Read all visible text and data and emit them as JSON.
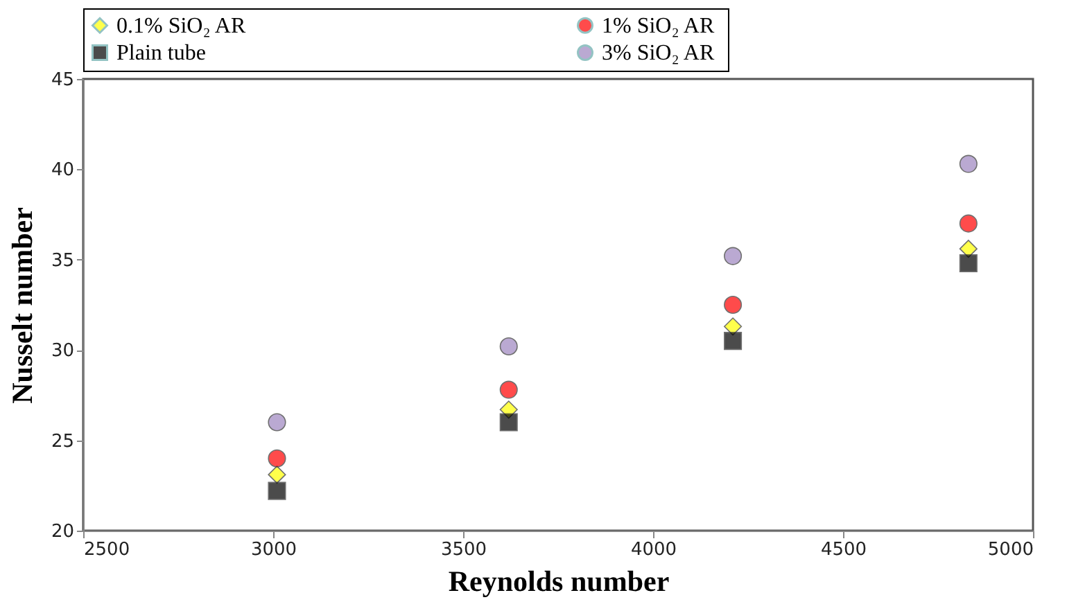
{
  "chart_data": {
    "type": "scatter",
    "xlabel": "Reynolds number",
    "ylabel": "Nusselt number",
    "xlim": [
      2500,
      5000
    ],
    "xticks": [
      2500,
      3000,
      3500,
      4000,
      4500,
      5000
    ],
    "ylim": [
      20,
      45
    ],
    "yticks": [
      20,
      25,
      30,
      35,
      40,
      45
    ],
    "grid": false,
    "legend": "top",
    "series": [
      {
        "name": "0.1% SiO₂  AR",
        "color": "#ffff00",
        "marker": "diamond",
        "x": [
          3010,
          3620,
          4210,
          4830
        ],
        "values": [
          23.1,
          26.7,
          31.3,
          35.6
        ]
      },
      {
        "name": "1% SiO₂  AR",
        "color": "#ff0000",
        "marker": "circle",
        "x": [
          3010,
          3620,
          4210,
          4830
        ],
        "values": [
          24.0,
          27.8,
          32.5,
          37.0
        ]
      },
      {
        "name": "Plain tube",
        "color": "#000000",
        "marker": "square",
        "x": [
          3010,
          3620,
          4210,
          4830
        ],
        "values": [
          22.2,
          26.0,
          30.5,
          34.8
        ]
      },
      {
        "name": "3% SiO₂  AR",
        "color": "#9e86c0",
        "marker": "circle",
        "x": [
          3010,
          3620,
          4210,
          4830
        ],
        "values": [
          26.0,
          30.2,
          35.2,
          40.3
        ]
      }
    ]
  }
}
